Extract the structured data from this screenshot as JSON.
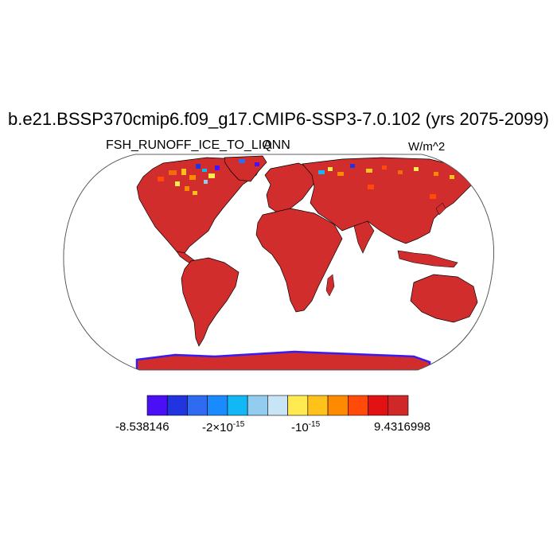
{
  "title": "b.e21.BSSP370cmip6.f09_g17.CMIP6-SSP3-7.0.102 (yrs 2075-2099)",
  "subtitle_left": "FSH_RUNOFF_ICE_TO_LIQ",
  "subtitle_center": "ANN",
  "units": "W/m^2",
  "colorbar": {
    "colors": [
      "#4b0ff5",
      "#2034e0",
      "#2f6bf0",
      "#1a8bff",
      "#12b8f5",
      "#92cdf0",
      "#c8e4f7",
      "#ffea52",
      "#ffc21a",
      "#ff8a00",
      "#ff4a0a",
      "#e31212",
      "#d02828"
    ],
    "labels": {
      "min": "-8.538146",
      "l2_base": "-2×10",
      "l2_exp": "-15",
      "l3_base": "-10",
      "l3_exp": "-15",
      "max": "9.4316998"
    }
  },
  "colors": {
    "land": "#d22d2d",
    "ocean": "#ffffff",
    "outline": "#000000",
    "antarctic_edge": "#3a1cf0",
    "high_lat_mix": "#f26a10"
  }
}
